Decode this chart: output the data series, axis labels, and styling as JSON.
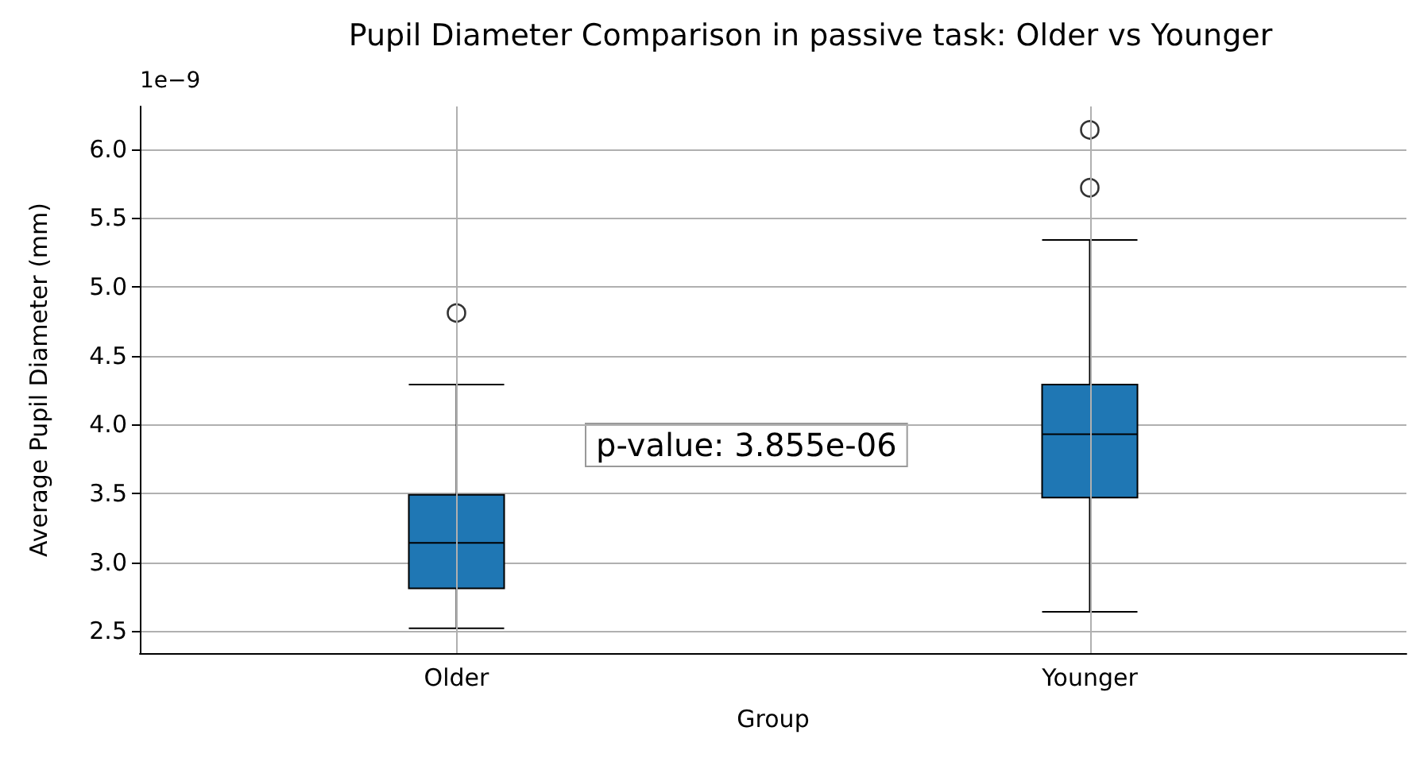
{
  "chart_data": {
    "type": "box",
    "title": "Pupil Diameter Comparison in passive task: Older vs Younger",
    "xlabel": "Group",
    "ylabel": "Average Pupil Diameter (mm)",
    "categories": [
      "Older",
      "Younger"
    ],
    "boxes": [
      {
        "low": 2.52,
        "q1": 2.81,
        "median": 3.14,
        "q3": 3.49,
        "high": 4.29,
        "outliers": [
          4.81
        ]
      },
      {
        "low": 2.64,
        "q1": 3.47,
        "median": 3.93,
        "q3": 4.29,
        "high": 5.34,
        "outliers": [
          5.72,
          6.14
        ]
      }
    ],
    "color": "#1f77b4",
    "ylim": [
      2.34,
      6.31
    ],
    "yticks": [
      {
        "value": 2.5,
        "label": "2.5"
      },
      {
        "value": 3.0,
        "label": "3.0"
      },
      {
        "value": 3.5,
        "label": "3.5"
      },
      {
        "value": 4.0,
        "label": "4.0"
      },
      {
        "value": 4.5,
        "label": "4.5"
      },
      {
        "value": 5.0,
        "label": "5.0"
      },
      {
        "value": 5.5,
        "label": "5.5"
      },
      {
        "value": 6.0,
        "label": "6.0"
      }
    ],
    "annotations": [
      "1e−9",
      "p-value: 3.855e-06"
    ],
    "grid": true
  }
}
